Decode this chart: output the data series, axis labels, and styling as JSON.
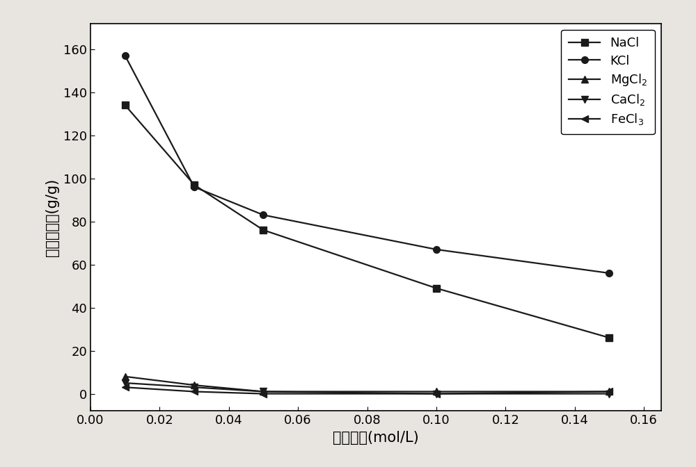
{
  "x": [
    0.01,
    0.03,
    0.05,
    0.1,
    0.15
  ],
  "NaCl": [
    134,
    97,
    76,
    49,
    26
  ],
  "KCl": [
    157,
    96,
    83,
    67,
    56
  ],
  "MgCl2": [
    8,
    4,
    1,
    1,
    1
  ],
  "CaCl2": [
    5,
    3,
    1,
    0,
    0
  ],
  "FeCl3": [
    3,
    1,
    0,
    0,
    1
  ],
  "xlabel": "盐浓度／(mol/L)",
  "ylabel": "吸水倍率／(g/g)",
  "xlim": [
    0.0,
    0.165
  ],
  "ylim": [
    -8,
    172
  ],
  "xticks": [
    0.0,
    0.02,
    0.04,
    0.06,
    0.08,
    0.1,
    0.12,
    0.14,
    0.16
  ],
  "yticks": [
    0,
    20,
    40,
    60,
    80,
    100,
    120,
    140,
    160
  ],
  "legend_labels": [
    "NaCl",
    "KCl",
    "MgCl$_2$",
    "CaCl$_2$",
    "FeCl$_3$"
  ],
  "line_color": "#1a1a1a",
  "bg_color": "#e8e4df",
  "plot_bg_color": "#ffffff",
  "markers": [
    "s",
    "o",
    "^",
    "v",
    "<"
  ],
  "markersizes": [
    7,
    7,
    7,
    7,
    7
  ],
  "label_fontsize": 15,
  "tick_fontsize": 13,
  "legend_fontsize": 13,
  "linewidth": 1.6
}
